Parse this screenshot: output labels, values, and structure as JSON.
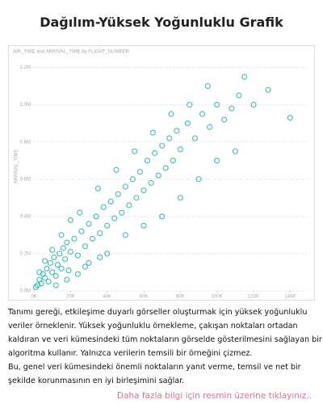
{
  "header": {
    "title": "Dağılım-Yüksek Yoğunluklu Grafik"
  },
  "chart_data": {
    "type": "scatter",
    "title": "AIR_TIME and ARRIVAL_TIME by FLIGHT_NUMBER",
    "y_label": "ARRIVAL_TIME",
    "color": "#1fb5a6",
    "grid": true,
    "xlim": [
      0,
      150000
    ],
    "ylim": [
      0,
      1250000
    ],
    "xticks": [
      {
        "value": 0,
        "label": "0K"
      },
      {
        "value": 20000,
        "label": "20K"
      },
      {
        "value": 40000,
        "label": "40K"
      },
      {
        "value": 60000,
        "label": "60K"
      },
      {
        "value": 80000,
        "label": "80K"
      },
      {
        "value": 100000,
        "label": "100K"
      },
      {
        "value": 120000,
        "label": "120K"
      },
      {
        "value": 140000,
        "label": "140K"
      }
    ],
    "yticks": [
      {
        "value": 0,
        "label": "0.0M"
      },
      {
        "value": 200000,
        "label": "0.2M"
      },
      {
        "value": 400000,
        "label": "0.4M"
      },
      {
        "value": 600000,
        "label": "0.6M"
      },
      {
        "value": 800000,
        "label": "0.8M"
      },
      {
        "value": 1000000,
        "label": "1.0M"
      },
      {
        "value": 1200000,
        "label": "1.2M"
      }
    ],
    "x": [
      2000,
      3000,
      4000,
      5000,
      6000,
      7000,
      8000,
      9000,
      10000,
      11000,
      12000,
      13000,
      14000,
      15000,
      16000,
      17000,
      18000,
      19000,
      20000,
      22000,
      24000,
      26000,
      28000,
      30000,
      32000,
      34000,
      36000,
      38000,
      40000,
      42000,
      44000,
      46000,
      48000,
      50000,
      52000,
      54000,
      56000,
      58000,
      60000,
      62000,
      64000,
      66000,
      68000,
      70000,
      72000,
      74000,
      76000,
      78000,
      80000,
      84000,
      88000,
      92000,
      96000,
      100000,
      104000,
      108000,
      112000,
      120000,
      140000,
      30000,
      40000,
      50000,
      60000,
      70000,
      80000,
      90000,
      100000,
      110000,
      45000,
      55000,
      35000,
      25000,
      65000,
      75000,
      85000,
      95000,
      115000,
      128000,
      20000,
      15000,
      10000,
      6000,
      3000,
      1000,
      12000,
      18000,
      24000,
      28000,
      36000
    ],
    "values": [
      30000,
      60000,
      40000,
      90000,
      70000,
      120000,
      50000,
      150000,
      100000,
      180000,
      80000,
      140000,
      200000,
      120000,
      230000,
      170000,
      260000,
      110000,
      210000,
      280000,
      190000,
      320000,
      240000,
      360000,
      280000,
      400000,
      310000,
      450000,
      350000,
      480000,
      390000,
      520000,
      420000,
      560000,
      460000,
      600000,
      500000,
      640000,
      540000,
      700000,
      580000,
      740000,
      620000,
      780000,
      660000,
      820000,
      700000,
      860000,
      760000,
      900000,
      820000,
      950000,
      880000,
      1000000,
      920000,
      980000,
      1050000,
      1000000,
      930000,
      150000,
      200000,
      300000,
      350000,
      400000,
      500000,
      600000,
      700000,
      750000,
      650000,
      750000,
      550000,
      420000,
      850000,
      950000,
      1000000,
      1100000,
      1150000,
      1080000,
      380000,
      300000,
      220000,
      160000,
      100000,
      20000,
      30000,
      60000,
      90000,
      130000,
      180000
    ]
  },
  "body": {
    "paragraphs": [
      "Tanımı gereği, etkileşime duyarlı görseller oluşturmak için yüksek yoğunluklu veriler örneklenir. Yüksek yoğunluklu örnekleme, çakışan noktaları ortadan kaldıran ve veri kümesindeki tüm noktaların görselde gösterilmesini sağlayan bir algoritma kullanır. Yalnızca verilerin temsili bir örneğini çizmez.",
      "Bu, genel veri kümesindeki önemli noktaların yanıt verme, temsil ve net bir şekilde korunmasının en iyi birleşimini sağlar."
    ]
  },
  "link": {
    "text": "Daha fazla bilgi için resmin üzerine tıklayınız.."
  }
}
